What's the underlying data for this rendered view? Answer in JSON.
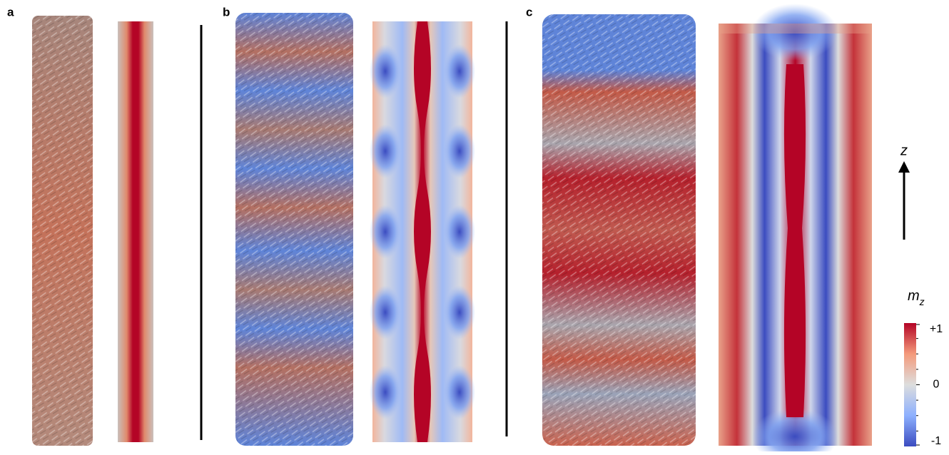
{
  "panels": [
    {
      "label": "a"
    },
    {
      "label": "b"
    },
    {
      "label": "c"
    }
  ],
  "axis": {
    "label": "z"
  },
  "colorbar": {
    "symbol": "m",
    "subscript": "z",
    "range": [
      -1,
      1
    ],
    "ticks": [
      {
        "value": 1,
        "label": "+1"
      },
      0,
      -1
    ]
  }
}
